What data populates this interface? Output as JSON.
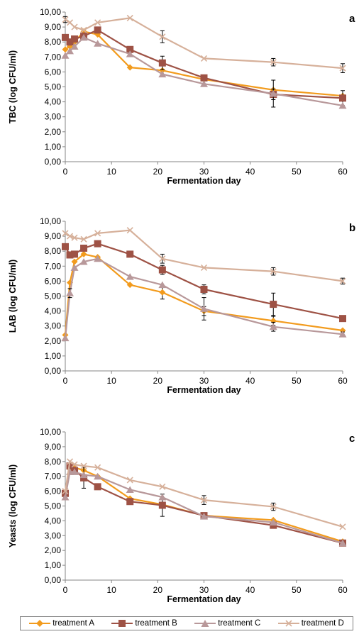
{
  "colors": {
    "treatment A": "#F29B1D",
    "treatment B": "#9E5245",
    "treatment C": "#B8989A",
    "treatment D": "#D6B09A"
  },
  "chart_data": [
    {
      "type": "line",
      "panel_label": "a",
      "xlabel": "Fermentation day",
      "ylabel": "TBC (log CFU/ml)",
      "xlim": [
        0,
        60
      ],
      "ylim": [
        0,
        10
      ],
      "xticks": [
        "0",
        "10",
        "20",
        "30",
        "40",
        "50",
        "60"
      ],
      "yticks": [
        "0,00",
        "1,00",
        "2,00",
        "3,00",
        "4,00",
        "5,00",
        "6,00",
        "7,00",
        "8,00",
        "9,00",
        "10,00"
      ],
      "x": [
        0,
        1,
        2,
        4,
        7,
        14,
        21,
        30,
        45,
        60
      ],
      "series": [
        {
          "name": "treatment A",
          "marker": "diamond",
          "values": [
            7.5,
            7.7,
            8.0,
            8.7,
            8.5,
            6.3,
            6.1,
            5.5,
            4.8,
            4.4
          ],
          "errors": [
            0,
            0,
            0,
            0,
            0,
            0,
            0,
            0,
            0,
            0
          ]
        },
        {
          "name": "treatment B",
          "marker": "square",
          "values": [
            8.3,
            8.0,
            8.2,
            8.4,
            8.8,
            7.5,
            6.6,
            5.6,
            4.5,
            4.25
          ],
          "errors": [
            0,
            0,
            0,
            0,
            0.2,
            0,
            0.45,
            0,
            0.35,
            0.5
          ]
        },
        {
          "name": "treatment C",
          "marker": "triangle",
          "values": [
            7.1,
            7.4,
            7.7,
            8.3,
            7.9,
            7.2,
            5.85,
            5.2,
            4.55,
            3.75
          ],
          "errors": [
            0,
            0,
            0,
            0,
            0,
            0,
            0,
            0,
            0.9,
            0
          ]
        },
        {
          "name": "treatment D",
          "marker": "x",
          "values": [
            9.5,
            9.3,
            9.0,
            8.8,
            9.3,
            9.6,
            8.35,
            6.9,
            6.65,
            6.25
          ],
          "errors": [
            0.2,
            0,
            0,
            0,
            0,
            0,
            0.4,
            0,
            0.25,
            0.3
          ]
        }
      ]
    },
    {
      "type": "line",
      "panel_label": "b",
      "xlabel": "Fermentation day",
      "ylabel": "LAB (log CFU/ml)",
      "xlim": [
        0,
        60
      ],
      "ylim": [
        0,
        10
      ],
      "xticks": [
        "0",
        "10",
        "20",
        "30",
        "40",
        "50",
        "60"
      ],
      "yticks": [
        "0,00",
        "1,00",
        "2,00",
        "3,00",
        "4,00",
        "5,00",
        "6,00",
        "7,00",
        "8,00",
        "9,00",
        "10,00"
      ],
      "x": [
        0,
        1,
        2,
        4,
        7,
        14,
        21,
        30,
        45,
        60
      ],
      "series": [
        {
          "name": "treatment A",
          "marker": "diamond",
          "values": [
            2.4,
            5.9,
            7.3,
            7.8,
            7.6,
            5.75,
            5.25,
            4.0,
            3.35,
            2.7
          ],
          "errors": [
            0,
            0,
            0,
            0,
            0,
            0,
            0.45,
            0.3,
            0.3,
            0
          ]
        },
        {
          "name": "treatment B",
          "marker": "square",
          "values": [
            8.3,
            7.75,
            7.8,
            8.2,
            8.5,
            7.8,
            6.75,
            5.45,
            4.45,
            3.5
          ],
          "errors": [
            0,
            0,
            0,
            0,
            0,
            0,
            0.3,
            0.3,
            0.75,
            0
          ]
        },
        {
          "name": "treatment C",
          "marker": "triangle",
          "values": [
            2.2,
            5.2,
            6.9,
            7.3,
            7.5,
            6.3,
            5.75,
            4.15,
            2.95,
            2.45
          ],
          "errors": [
            0,
            0.3,
            0,
            0,
            0,
            0,
            0,
            0.75,
            0.3,
            0.15
          ]
        },
        {
          "name": "treatment D",
          "marker": "x",
          "values": [
            9.2,
            9.0,
            8.9,
            8.8,
            9.2,
            9.4,
            7.5,
            6.9,
            6.65,
            6.0
          ],
          "errors": [
            0,
            0,
            0,
            0,
            0,
            0,
            0.3,
            0,
            0.25,
            0.2
          ]
        }
      ]
    },
    {
      "type": "line",
      "panel_label": "c",
      "xlabel": "Fermentation day",
      "ylabel": "Yeasts (log CFU/ml)",
      "xlim": [
        0,
        60
      ],
      "ylim": [
        0,
        10
      ],
      "xticks": [
        "0",
        "10",
        "20",
        "30",
        "40",
        "50",
        "60"
      ],
      "yticks": [
        "0,00",
        "1,00",
        "2,00",
        "3,00",
        "4,00",
        "5,00",
        "6,00",
        "7,00",
        "8,00",
        "9,00",
        "10,00"
      ],
      "x": [
        0,
        1,
        2,
        4,
        7,
        14,
        21,
        30,
        45,
        60
      ],
      "series": [
        {
          "name": "treatment A",
          "marker": "diamond",
          "values": [
            5.8,
            7.5,
            7.6,
            7.4,
            7.0,
            5.5,
            5.1,
            4.35,
            4.05,
            2.6
          ],
          "errors": [
            0,
            0,
            0,
            0,
            0,
            0,
            0,
            0,
            0,
            0
          ]
        },
        {
          "name": "treatment B",
          "marker": "square",
          "values": [
            5.85,
            7.7,
            7.4,
            6.9,
            6.3,
            5.3,
            5.05,
            4.35,
            3.7,
            2.5
          ],
          "errors": [
            0,
            0,
            0,
            0.7,
            0,
            0,
            0.75,
            0,
            0,
            0
          ]
        },
        {
          "name": "treatment C",
          "marker": "triangle",
          "values": [
            5.6,
            7.3,
            7.3,
            7.1,
            7.0,
            6.1,
            5.6,
            4.3,
            3.9,
            2.5
          ],
          "errors": [
            0,
            0,
            0,
            0,
            0,
            0,
            0,
            0,
            0,
            0
          ]
        },
        {
          "name": "treatment D",
          "marker": "x",
          "values": [
            6.0,
            8.0,
            7.8,
            7.7,
            7.6,
            6.75,
            6.3,
            5.4,
            4.95,
            3.6
          ],
          "errors": [
            0,
            0,
            0,
            0,
            0,
            0,
            0,
            0.3,
            0.25,
            0
          ]
        }
      ]
    }
  ],
  "legend": {
    "items": [
      {
        "label": "treatment A",
        "marker": "diamond"
      },
      {
        "label": "treatment B",
        "marker": "square"
      },
      {
        "label": "treatment C",
        "marker": "triangle"
      },
      {
        "label": "treatment D",
        "marker": "x"
      }
    ]
  }
}
